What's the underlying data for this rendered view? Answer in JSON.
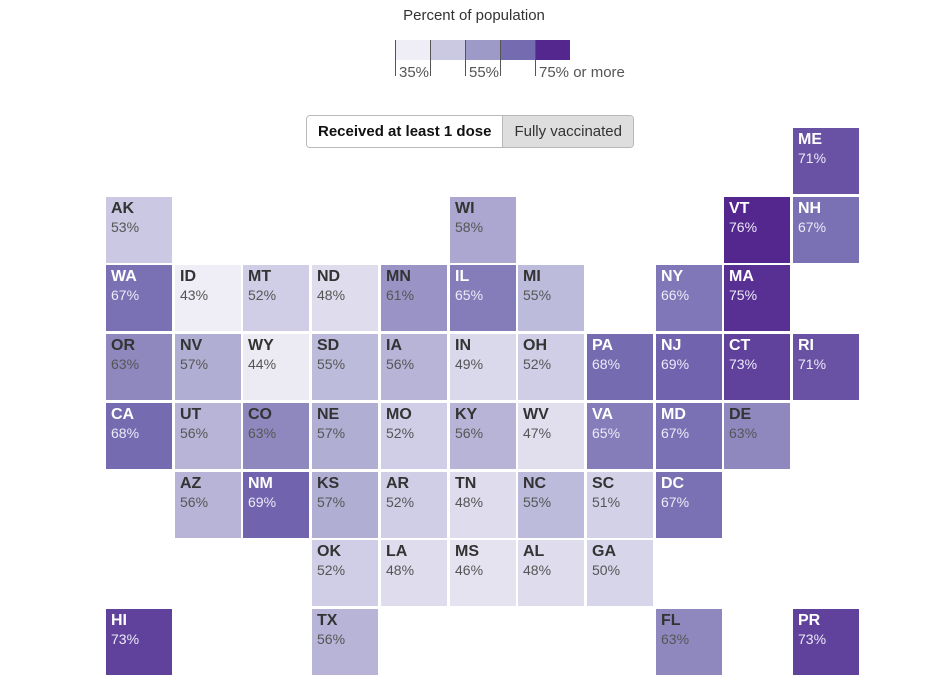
{
  "legend": {
    "title": "Percent of population",
    "colors": [
      "#efedf5",
      "#cbc9e2",
      "#9e9ac8",
      "#756bb1",
      "#54278f"
    ],
    "labels": [
      "35%",
      "55%",
      "75% or more"
    ]
  },
  "toggle": {
    "options": [
      {
        "label": "Received at least 1 dose",
        "selected": true
      },
      {
        "label": "Fully vaccinated",
        "selected": false
      }
    ]
  },
  "states": [
    {
      "abbr": "ME",
      "value": "71%",
      "col": 10,
      "row": 0
    },
    {
      "abbr": "AK",
      "value": "53%",
      "col": 0,
      "row": 1
    },
    {
      "abbr": "WI",
      "value": "58%",
      "col": 5,
      "row": 1
    },
    {
      "abbr": "VT",
      "value": "76%",
      "col": 9,
      "row": 1
    },
    {
      "abbr": "NH",
      "value": "67%",
      "col": 10,
      "row": 1
    },
    {
      "abbr": "WA",
      "value": "67%",
      "col": 0,
      "row": 2
    },
    {
      "abbr": "ID",
      "value": "43%",
      "col": 1,
      "row": 2
    },
    {
      "abbr": "MT",
      "value": "52%",
      "col": 2,
      "row": 2
    },
    {
      "abbr": "ND",
      "value": "48%",
      "col": 3,
      "row": 2
    },
    {
      "abbr": "MN",
      "value": "61%",
      "col": 4,
      "row": 2
    },
    {
      "abbr": "IL",
      "value": "65%",
      "col": 5,
      "row": 2
    },
    {
      "abbr": "MI",
      "value": "55%",
      "col": 6,
      "row": 2
    },
    {
      "abbr": "NY",
      "value": "66%",
      "col": 8,
      "row": 2
    },
    {
      "abbr": "MA",
      "value": "75%",
      "col": 9,
      "row": 2
    },
    {
      "abbr": "OR",
      "value": "63%",
      "col": 0,
      "row": 3
    },
    {
      "abbr": "NV",
      "value": "57%",
      "col": 1,
      "row": 3
    },
    {
      "abbr": "WY",
      "value": "44%",
      "col": 2,
      "row": 3
    },
    {
      "abbr": "SD",
      "value": "55%",
      "col": 3,
      "row": 3
    },
    {
      "abbr": "IA",
      "value": "56%",
      "col": 4,
      "row": 3
    },
    {
      "abbr": "IN",
      "value": "49%",
      "col": 5,
      "row": 3
    },
    {
      "abbr": "OH",
      "value": "52%",
      "col": 6,
      "row": 3
    },
    {
      "abbr": "PA",
      "value": "68%",
      "col": 7,
      "row": 3
    },
    {
      "abbr": "NJ",
      "value": "69%",
      "col": 8,
      "row": 3
    },
    {
      "abbr": "CT",
      "value": "73%",
      "col": 9,
      "row": 3
    },
    {
      "abbr": "RI",
      "value": "71%",
      "col": 10,
      "row": 3
    },
    {
      "abbr": "CA",
      "value": "68%",
      "col": 0,
      "row": 4
    },
    {
      "abbr": "UT",
      "value": "56%",
      "col": 1,
      "row": 4
    },
    {
      "abbr": "CO",
      "value": "63%",
      "col": 2,
      "row": 4
    },
    {
      "abbr": "NE",
      "value": "57%",
      "col": 3,
      "row": 4
    },
    {
      "abbr": "MO",
      "value": "52%",
      "col": 4,
      "row": 4
    },
    {
      "abbr": "KY",
      "value": "56%",
      "col": 5,
      "row": 4
    },
    {
      "abbr": "WV",
      "value": "47%",
      "col": 6,
      "row": 4
    },
    {
      "abbr": "VA",
      "value": "65%",
      "col": 7,
      "row": 4
    },
    {
      "abbr": "MD",
      "value": "67%",
      "col": 8,
      "row": 4
    },
    {
      "abbr": "DE",
      "value": "63%",
      "col": 9,
      "row": 4
    },
    {
      "abbr": "AZ",
      "value": "56%",
      "col": 1,
      "row": 5
    },
    {
      "abbr": "NM",
      "value": "69%",
      "col": 2,
      "row": 5
    },
    {
      "abbr": "KS",
      "value": "57%",
      "col": 3,
      "row": 5
    },
    {
      "abbr": "AR",
      "value": "52%",
      "col": 4,
      "row": 5
    },
    {
      "abbr": "TN",
      "value": "48%",
      "col": 5,
      "row": 5
    },
    {
      "abbr": "NC",
      "value": "55%",
      "col": 6,
      "row": 5
    },
    {
      "abbr": "SC",
      "value": "51%",
      "col": 7,
      "row": 5
    },
    {
      "abbr": "DC",
      "value": "67%",
      "col": 8,
      "row": 5
    },
    {
      "abbr": "OK",
      "value": "52%",
      "col": 3,
      "row": 6
    },
    {
      "abbr": "LA",
      "value": "48%",
      "col": 4,
      "row": 6
    },
    {
      "abbr": "MS",
      "value": "46%",
      "col": 5,
      "row": 6
    },
    {
      "abbr": "AL",
      "value": "48%",
      "col": 6,
      "row": 6
    },
    {
      "abbr": "GA",
      "value": "50%",
      "col": 7,
      "row": 6
    },
    {
      "abbr": "HI",
      "value": "73%",
      "col": 0,
      "row": 7
    },
    {
      "abbr": "TX",
      "value": "56%",
      "col": 3,
      "row": 7
    },
    {
      "abbr": "FL",
      "value": "63%",
      "col": 8,
      "row": 7
    },
    {
      "abbr": "PR",
      "value": "73%",
      "col": 10,
      "row": 7
    }
  ]
}
